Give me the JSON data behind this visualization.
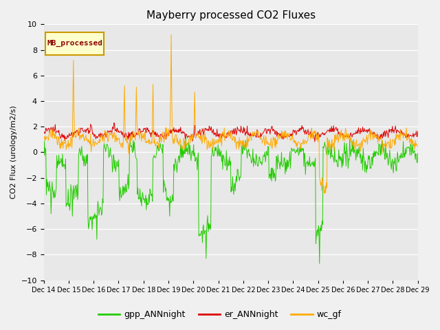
{
  "title": "Mayberry processed CO2 Fluxes",
  "ylabel": "CO2 Flux (urology/m2/s)",
  "ylim": [
    -10,
    10
  ],
  "yticks": [
    -10,
    -8,
    -6,
    -4,
    -2,
    0,
    2,
    4,
    6,
    8,
    10
  ],
  "bg_color": "#e8e8e8",
  "fig_color": "#f0f0f0",
  "line_colors": {
    "gpp_ANNnight": "#22cc00",
    "er_ANNnight": "#dd0000",
    "wc_gf": "#ffaa00"
  },
  "legend_labels": [
    "gpp_ANNnight",
    "er_ANNnight",
    "wc_gf"
  ],
  "inset_label": "MB_processed",
  "inset_label_color": "#880000",
  "inset_box_facecolor": "#ffffcc",
  "inset_box_edgecolor": "#cc9900",
  "n_points": 720,
  "start_day": 14,
  "end_day": 29
}
